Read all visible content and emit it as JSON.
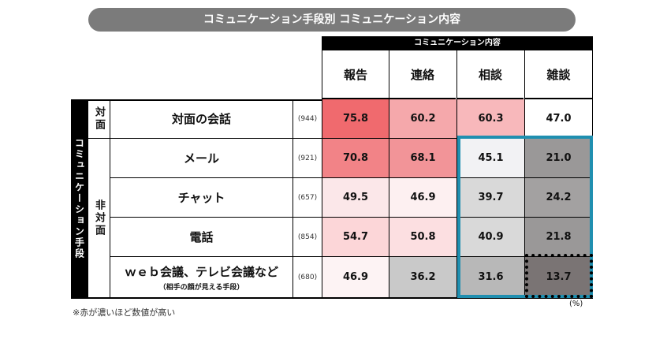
{
  "title": "コミュニケーション手段別 コミュニケーション内容",
  "header_band": "コミュニケーション内容",
  "columns": [
    "報告",
    "連絡",
    "相談",
    "雑談"
  ],
  "vertical_label": "コミュニケーション手段",
  "groups": {
    "face": "対面",
    "nonface": "非対面"
  },
  "rows": [
    {
      "name": "対面の会話",
      "sub": "",
      "count": "(944)",
      "values": [
        "75.8",
        "60.2",
        "60.3",
        "47.0"
      ]
    },
    {
      "name": "メール",
      "sub": "",
      "count": "(921)",
      "values": [
        "70.8",
        "68.1",
        "45.1",
        "21.0"
      ]
    },
    {
      "name": "チャット",
      "sub": "",
      "count": "(657)",
      "values": [
        "49.5",
        "46.9",
        "39.7",
        "24.2"
      ]
    },
    {
      "name": "電話",
      "sub": "",
      "count": "(854)",
      "values": [
        "54.7",
        "50.8",
        "40.9",
        "21.8"
      ]
    },
    {
      "name": "ｗｅｂ会議、テレビ会議など",
      "sub": "（相手の顔が見える手段）",
      "count": "(680)",
      "values": [
        "46.9",
        "36.2",
        "31.6",
        "13.7"
      ]
    }
  ],
  "cell_colors": [
    [
      "#f06a6e",
      "#f5a8ab",
      "#f8b8bb",
      "#ffffff"
    ],
    [
      "#f28387",
      "#f29498",
      "#f2f2f4",
      "#9a9898"
    ],
    [
      "#fbe7e9",
      "#fdf0f1",
      "#d9d9d9",
      "#a3a1a1"
    ],
    [
      "#fcd6d8",
      "#fcdfe1",
      "#d9d9d9",
      "#9a9898"
    ],
    [
      "#fdf3f4",
      "#c9c9c9",
      "#b8b8b8",
      "#7a7474"
    ]
  ],
  "accent": {
    "blue_box": "#1f8fb0"
  },
  "unit": "(%)",
  "footnote": "※赤が濃いほど数値が高い"
}
